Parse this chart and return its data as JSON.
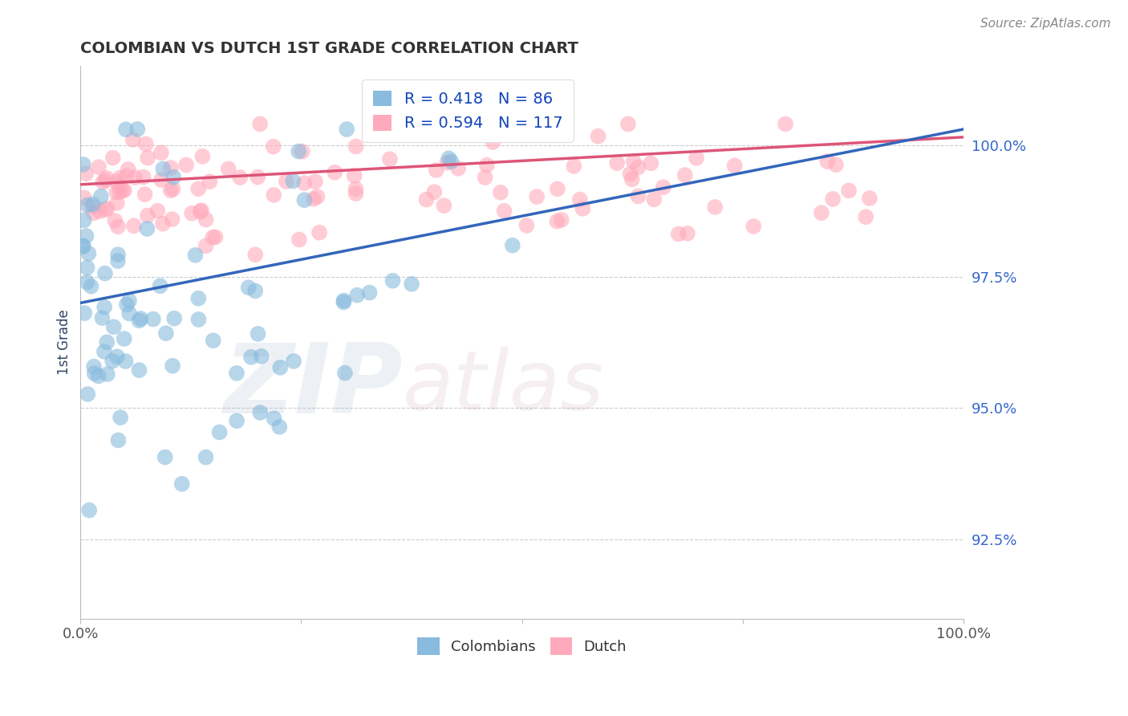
{
  "title": "COLOMBIAN VS DUTCH 1ST GRADE CORRELATION CHART",
  "source_text": "Source: ZipAtlas.com",
  "ylabel": "1st Grade",
  "yticks": [
    92.5,
    95.0,
    97.5,
    100.0
  ],
  "ytick_labels": [
    "92.5%",
    "95.0%",
    "97.5%",
    "100.0%"
  ],
  "xlim": [
    0.0,
    100.0
  ],
  "ylim": [
    91.0,
    101.5
  ],
  "colombian_color": "#88BBDD",
  "dutch_color": "#FFAABC",
  "colombian_line_color": "#3366BB",
  "dutch_line_color": "#DD5577",
  "watermark_zip": "ZIP",
  "watermark_atlas": "atlas",
  "colombians_label": "Colombians",
  "dutch_label": "Dutch",
  "R_colombian": 0.418,
  "N_colombian": 86,
  "R_dutch": 0.594,
  "N_dutch": 117,
  "background_color": "#FFFFFF",
  "grid_color": "#CCCCCC",
  "title_color": "#333333",
  "ytick_color": "#3366CC",
  "seed": 12345
}
